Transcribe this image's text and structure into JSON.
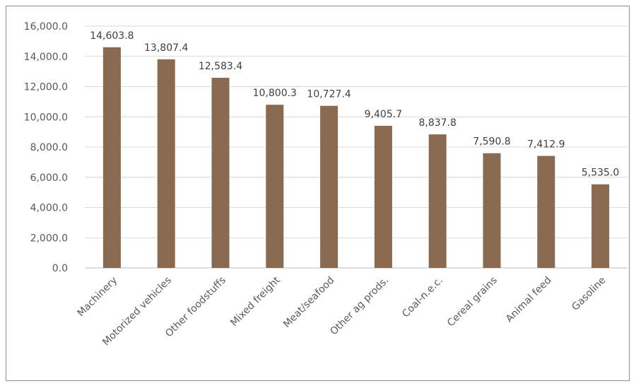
{
  "colors": {
    "bar": "#8b6a52",
    "grid": "#d9d9d9",
    "axis": "#bfbfbf"
  },
  "chart_data": {
    "type": "bar",
    "title": "",
    "xlabel": "",
    "ylabel": "",
    "categories": [
      "Machinery",
      "Motorized vehicles",
      "Other foodstuffs",
      "Mixed freight",
      "Meat/seafood",
      "Other ag prods.",
      "Coal-n.e.c.",
      "Cereal grains",
      "Animal feed",
      "Gasoline"
    ],
    "values": [
      14603.8,
      13807.4,
      12583.4,
      10800.3,
      10727.4,
      9405.7,
      8837.8,
      7590.8,
      7412.9,
      5535.0
    ],
    "data_labels": [
      "14,603.8",
      "13,807.4",
      "12,583.4",
      "10,800.3",
      "10,727.4",
      "9,405.7",
      "8,837.8",
      "7,590.8",
      "7,412.9",
      "5,535.0"
    ],
    "ylim": [
      0,
      16000
    ],
    "yticks": [
      0,
      2000,
      4000,
      6000,
      8000,
      10000,
      12000,
      14000,
      16000
    ],
    "ytick_labels": [
      "0.0",
      "2,000.0",
      "4,000.0",
      "6,000.0",
      "8,000.0",
      "10,000.0",
      "12,000.0",
      "14,000.0",
      "16,000.0"
    ],
    "grid": true,
    "legend": "none"
  }
}
